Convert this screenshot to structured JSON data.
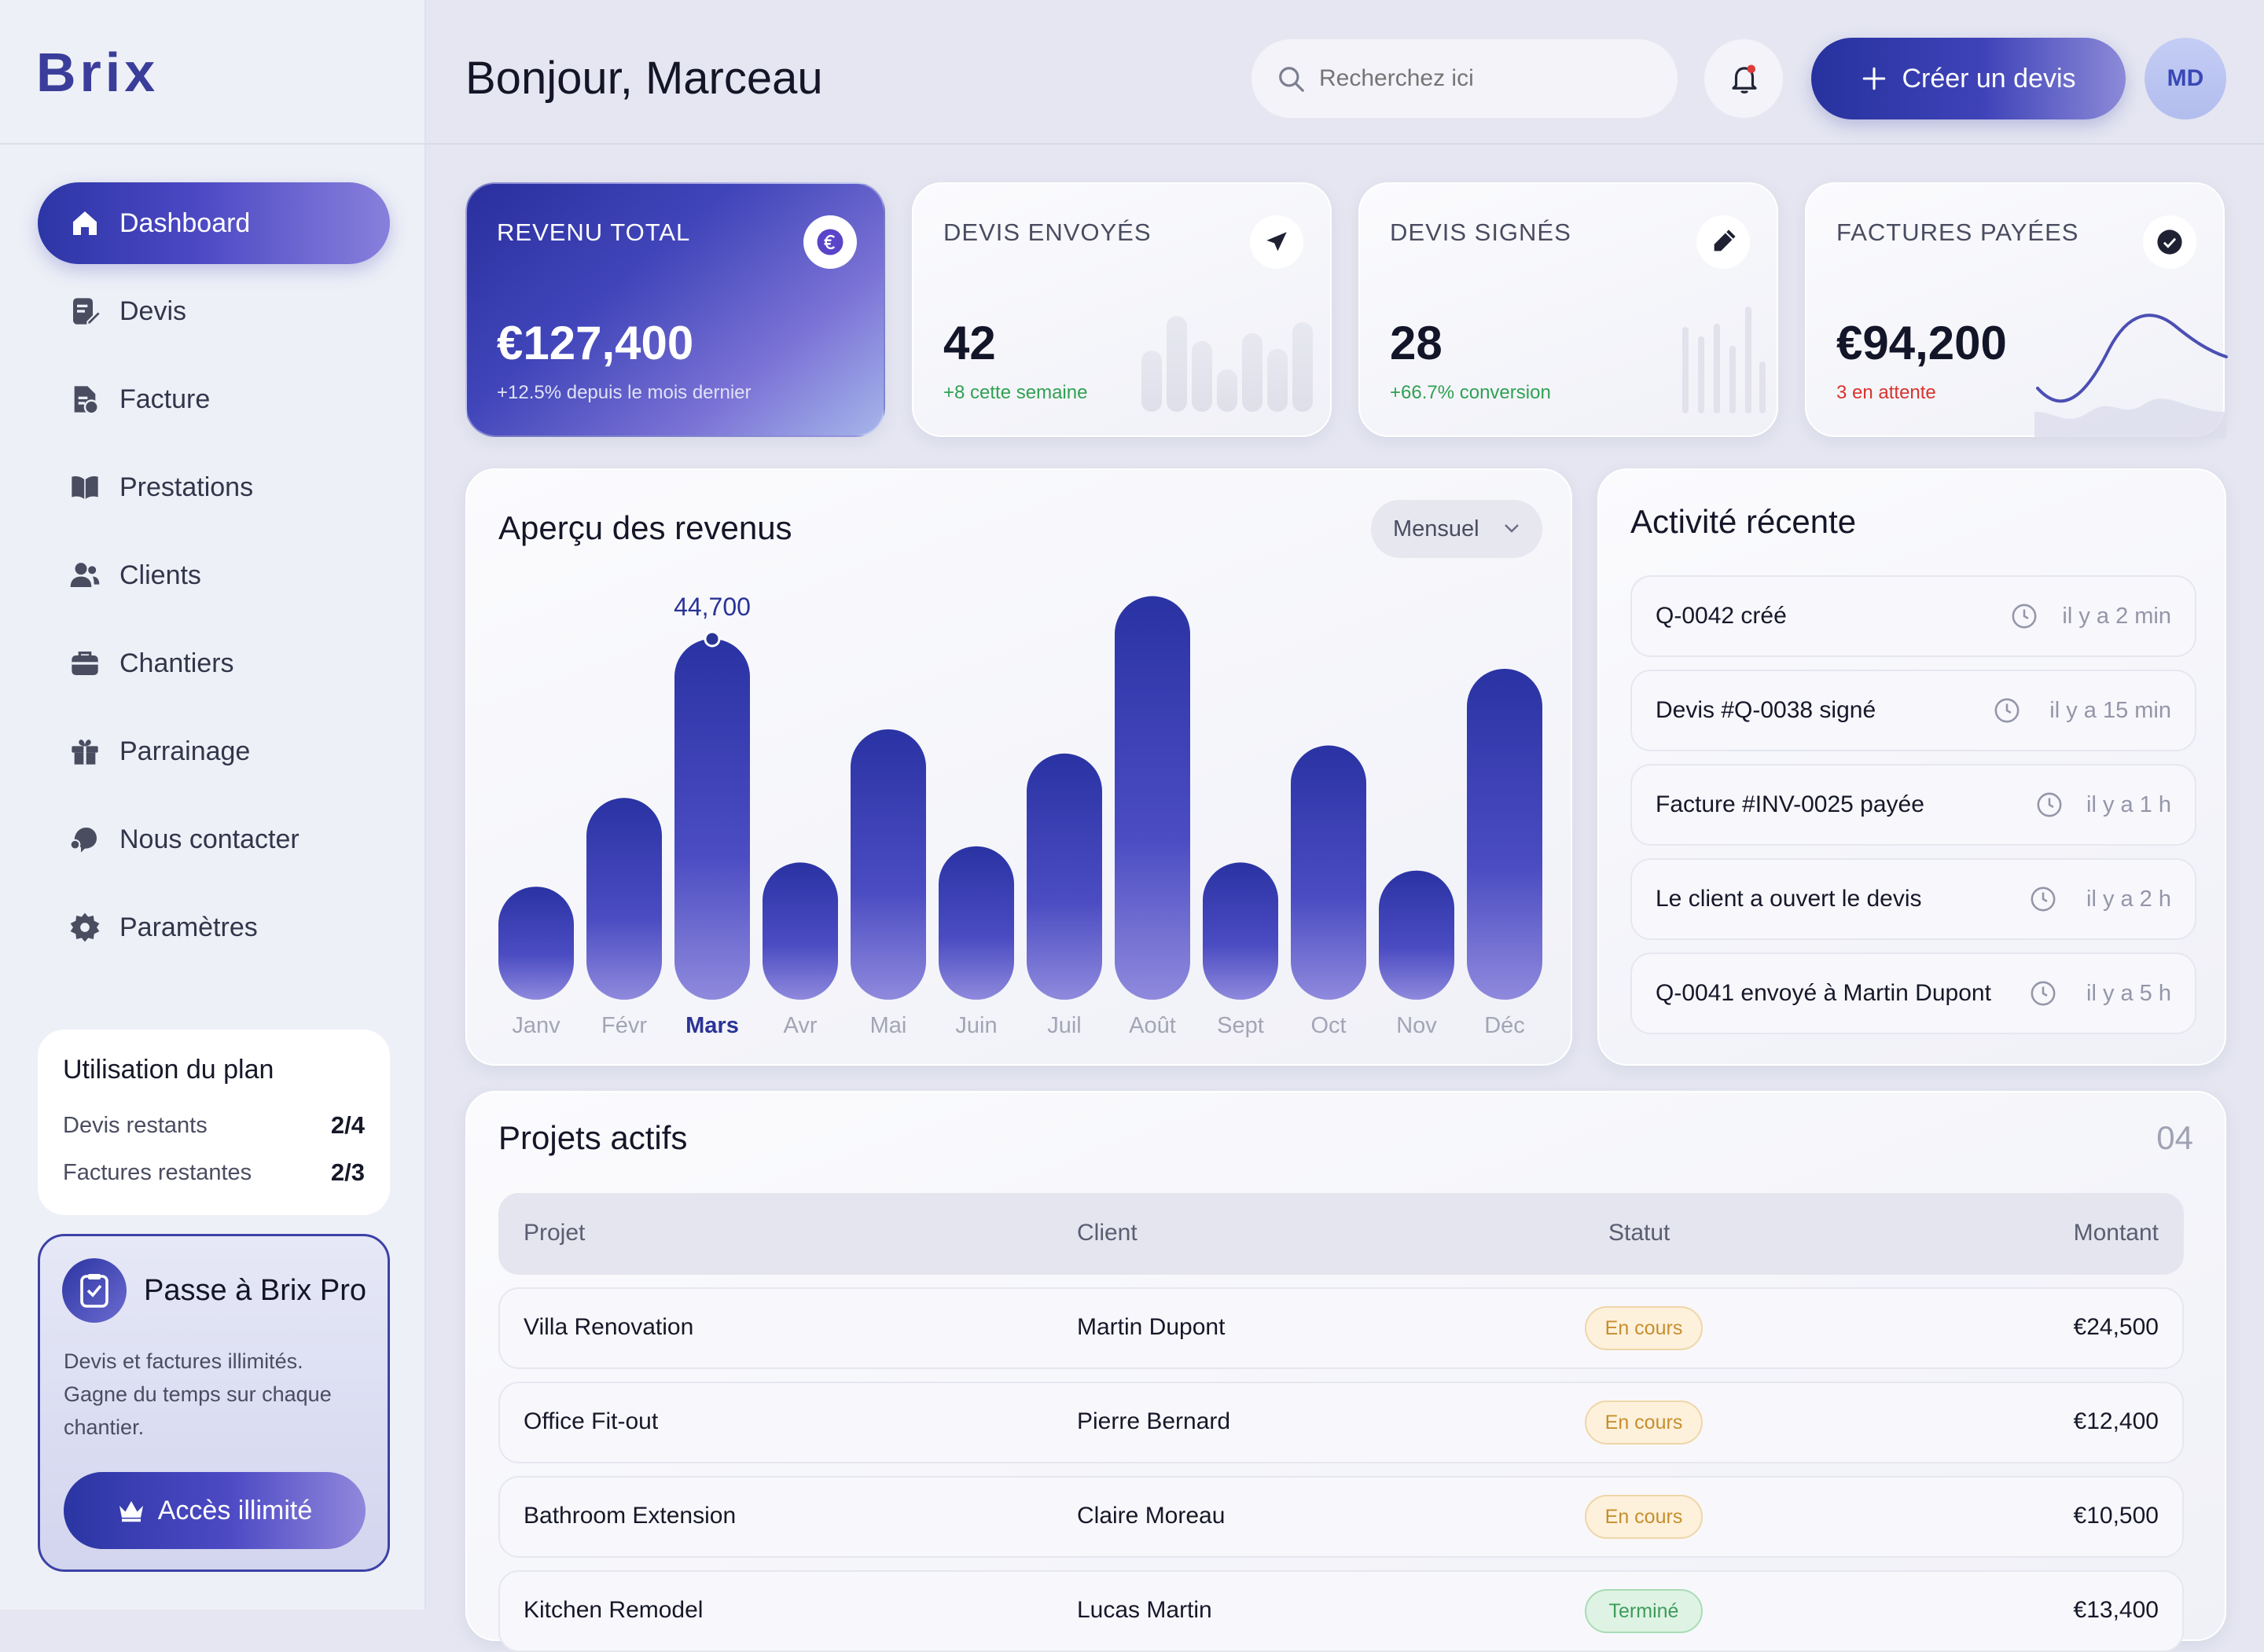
{
  "brand": {
    "name": "Brix"
  },
  "sidebar": {
    "items": [
      {
        "label": "Dashboard",
        "icon": "home-icon",
        "active": true
      },
      {
        "label": "Devis",
        "icon": "document-edit-icon"
      },
      {
        "label": "Facture",
        "icon": "invoice-icon"
      },
      {
        "label": "Prestations",
        "icon": "book-icon"
      },
      {
        "label": "Clients",
        "icon": "users-icon"
      },
      {
        "label": "Chantiers",
        "icon": "briefcase-icon"
      },
      {
        "label": "Parrainage",
        "icon": "gift-icon"
      },
      {
        "label": "Nous contacter",
        "icon": "support-icon"
      },
      {
        "label": "Paramètres",
        "icon": "gear-icon"
      }
    ],
    "plan": {
      "title": "Utilisation du plan",
      "rows": [
        {
          "label": "Devis restants",
          "value": "2/4"
        },
        {
          "label": "Factures restantes",
          "value": "2/3"
        }
      ]
    },
    "pro": {
      "title": "Passe à Brix Pro",
      "desc_lines": [
        "Devis et factures illimités.",
        "Gagne du temps sur chaque",
        "chantier."
      ],
      "button": "Accès illimité"
    }
  },
  "header": {
    "greeting": "Bonjour, Marceau",
    "search_placeholder": "Recherchez ici",
    "create_label": "Créer un devis",
    "avatar_initials": "MD"
  },
  "kpis": {
    "revenue": {
      "title": "REVENU TOTAL",
      "value": "€127,400",
      "sub": "+12.5% depuis le mois dernier",
      "icon": "euro-icon"
    },
    "sent": {
      "title": "DEVIS ENVOYÉS",
      "value": "42",
      "sub": "+8 cette semaine",
      "icon": "paper-plane-icon"
    },
    "signed": {
      "title": "DEVIS SIGNÉS",
      "value": "28",
      "sub": "+66.7% conversion",
      "icon": "pen-icon"
    },
    "paid": {
      "title": "FACTURES PAYÉES",
      "value": "€94,200",
      "sub": "3 en attente",
      "icon": "check-circle-icon"
    }
  },
  "chart": {
    "title": "Aperçu des revenus",
    "period": "Mensuel",
    "highlight_label": "44,700"
  },
  "chart_data": {
    "type": "bar",
    "categories": [
      "Janv",
      "Févr",
      "Mars",
      "Avr",
      "Mai",
      "Juin",
      "Juil",
      "Août",
      "Sept",
      "Oct",
      "Nov",
      "Déc"
    ],
    "values": [
      14000,
      25000,
      44700,
      17000,
      33500,
      19000,
      30500,
      50000,
      17000,
      31500,
      16000,
      41000
    ],
    "highlight_index": 2,
    "ylim": [
      0,
      52000
    ],
    "grid": false,
    "legend": "none"
  },
  "activity": {
    "title": "Activité récente",
    "items": [
      {
        "text": "Q-0042 créé",
        "time": "il y a 2 min"
      },
      {
        "text": "Devis #Q-0038 signé",
        "time": "il y a 15 min"
      },
      {
        "text": "Facture #INV-0025 payée",
        "time": "il y a 1 h"
      },
      {
        "text": "Le client a ouvert le devis",
        "time": "il y a 2 h"
      },
      {
        "text": "Q-0041 envoyé à Martin Dupont",
        "time": "il y a 5 h"
      }
    ]
  },
  "projects": {
    "title": "Projets actifs",
    "count": "04",
    "headers": {
      "project": "Projet",
      "client": "Client",
      "status": "Statut",
      "amount": "Montant"
    },
    "rows": [
      {
        "project": "Villa Renovation",
        "client": "Martin Dupont",
        "status": "En cours",
        "amount": "€24,500"
      },
      {
        "project": "Office Fit-out",
        "client": "Pierre Bernard",
        "status": "En cours",
        "amount": "€12,400"
      },
      {
        "project": "Bathroom Extension",
        "client": "Claire Moreau",
        "status": "En cours",
        "amount": "€10,500"
      },
      {
        "project": "Kitchen Remodel",
        "client": "Lucas Martin",
        "status": "Terminé",
        "amount": "€13,400"
      }
    ]
  },
  "colors": {
    "accent": "#2f39a8",
    "accent_light": "#8a84db",
    "positive": "#2fa152",
    "negative": "#d8332e"
  }
}
